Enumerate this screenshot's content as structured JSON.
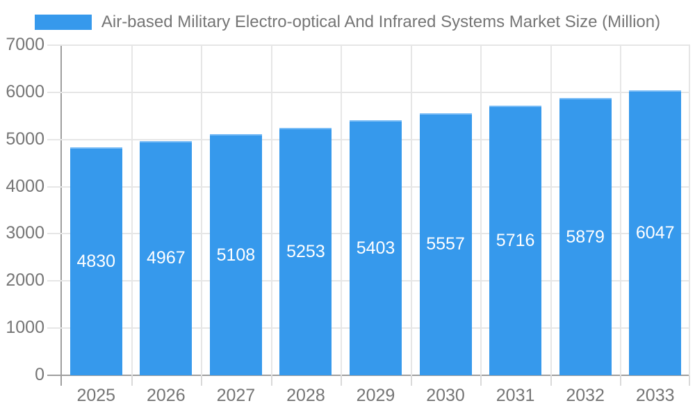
{
  "legend": {
    "label": "Air-based Military Electro-optical And Infrared Systems Market Size (Million)"
  },
  "chart_data": {
    "type": "bar",
    "title": "Air-based Military Electro-optical And Infrared Systems Market Size (Million)",
    "categories": [
      "2025",
      "2026",
      "2027",
      "2028",
      "2029",
      "2030",
      "2031",
      "2032",
      "2033"
    ],
    "values": [
      4830,
      4967,
      5108,
      5253,
      5403,
      5557,
      5716,
      5879,
      6047
    ],
    "xlabel": "",
    "ylabel": "",
    "ylim": [
      0,
      7000
    ],
    "yticks": [
      0,
      1000,
      2000,
      3000,
      4000,
      5000,
      6000,
      7000
    ],
    "grid": true,
    "legend_position": "top-center",
    "colors": {
      "bar_fill": "#3699EC",
      "bar_border": "#79BCF6",
      "value_label": "#ffffff",
      "axis_line": "#9e9e9e",
      "gridline": "#e6e6e6",
      "tick": "#d9d9d9",
      "text": "#757575"
    }
  }
}
